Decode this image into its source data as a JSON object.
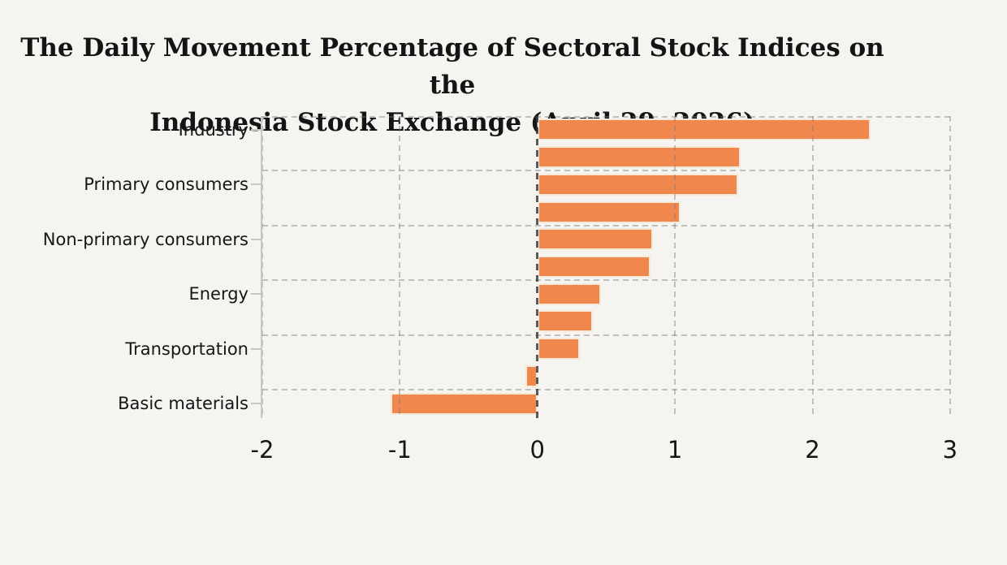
{
  "title": {
    "line1": "The Daily Movement Percentage of Sectoral Stock Indices on the",
    "line2": "Indonesia Stock Exchange (April 29, 2026)"
  },
  "chart_data": {
    "type": "bar",
    "orientation": "horizontal",
    "title": "The Daily Movement Percentage of Sectoral Stock Indices on the Indonesia Stock Exchange (April 29, 2026)",
    "categories": [
      "Industry",
      "",
      "Primary consumers",
      "",
      "Non-primary consumers",
      "",
      "Energy",
      "",
      "Transportation",
      "",
      "Basic materials"
    ],
    "values": [
      2.42,
      1.48,
      1.46,
      1.04,
      0.84,
      0.82,
      0.46,
      0.4,
      0.31,
      -0.09,
      -1.07
    ],
    "xlabel": "",
    "ylabel": "",
    "xlim": [
      -2,
      3.03
    ],
    "x_ticks": [
      -2,
      -1,
      0,
      1,
      2,
      3
    ],
    "grid": true,
    "grid_style": "dashed",
    "legend": false,
    "bar_color": "#f0884e",
    "bar_edge_color": "#f8e9d9",
    "background_color": "#f5f4f1",
    "grid_color": "#c9c8c5",
    "zero_line_color": "#3a3a3a",
    "text_color": "#161616"
  }
}
